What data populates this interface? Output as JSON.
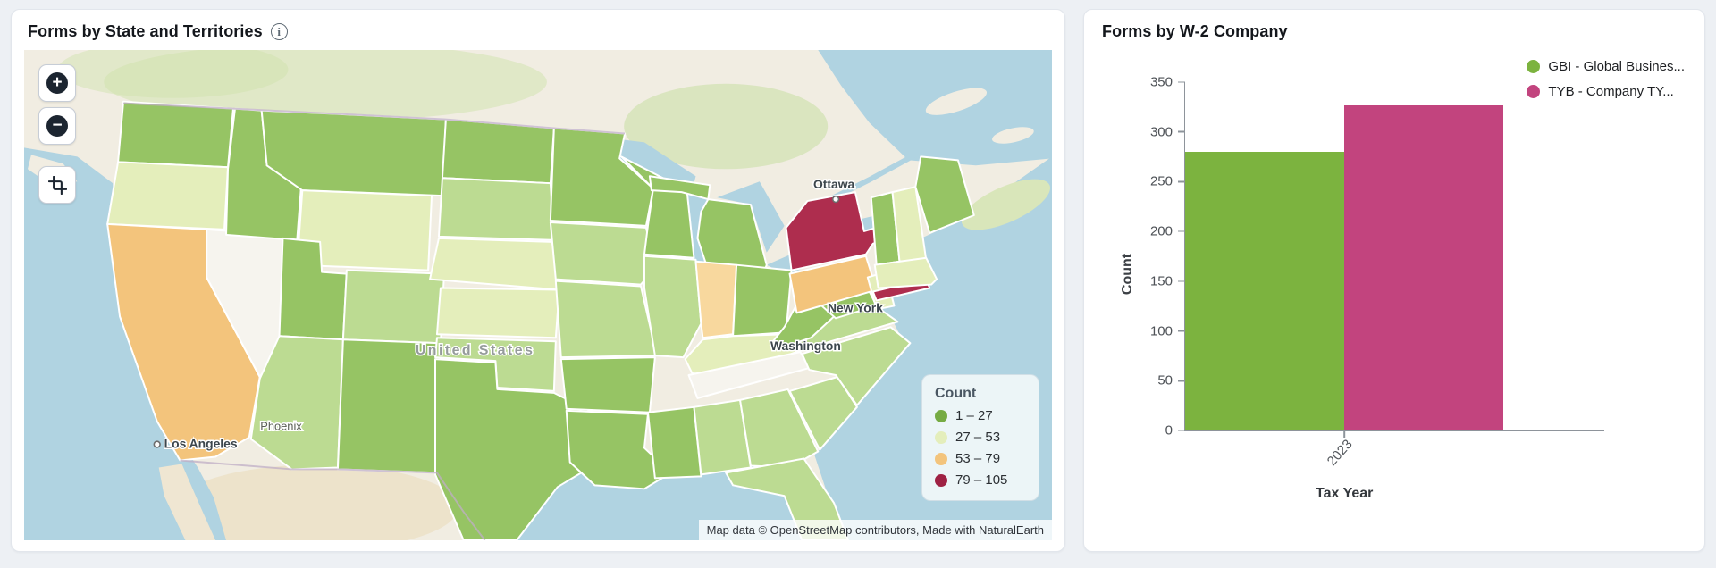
{
  "map_panel": {
    "title": "Forms by State and Territories",
    "controls": {
      "zoom_in_label": "+",
      "zoom_out_label": "−",
      "box_zoom_icon": "crop-icon"
    },
    "legend": {
      "title": "Count",
      "items": [
        {
          "label": "1 – 27",
          "color": "#76ab43"
        },
        {
          "label": "27 – 53",
          "color": "#e4eebb"
        },
        {
          "label": "53 – 79",
          "color": "#f3c47c"
        },
        {
          "label": "79 – 105",
          "color": "#9e2143"
        }
      ]
    },
    "attribution": "Map data © OpenStreetMap contributors, Made with NaturalEarth",
    "city_labels": [
      "Ottawa",
      "New York",
      "Washington",
      "United States",
      "Los Angeles",
      "Phoenix"
    ],
    "chart_data": {
      "type": "choropleth",
      "metric": "Count",
      "bins": [
        "1 – 27",
        "27 – 53",
        "53 – 79",
        "79 – 105"
      ],
      "palette": {
        "bin1": "#96c464",
        "bin1_light": "#bcdb92",
        "bin2": "#e4eebb",
        "bin3": "#f3c47c",
        "bin3_light": "#f8d89e",
        "bin4": "#ae2d4e",
        "no_data": "#f6f4ee"
      },
      "states": {
        "WA": "bin1",
        "OR": "bin2",
        "CA": "bin3",
        "NV": "no_data",
        "ID": "bin1",
        "MT": "bin1",
        "WY": "bin2",
        "UT": "bin1",
        "CO": "bin1_light",
        "AZ": "bin1_light",
        "NM": "bin1",
        "ND": "bin1",
        "SD": "bin1_light",
        "NE": "bin2",
        "KS": "bin2",
        "OK": "bin1_light",
        "TX": "bin1",
        "MN": "bin1",
        "IA": "bin1_light",
        "MO": "bin1_light",
        "AR": "bin1",
        "LA": "bin1",
        "WI": "bin1",
        "IL": "bin1_light",
        "IN": "bin3_light",
        "MI": "bin1",
        "OH": "bin1",
        "KY": "bin2",
        "TN": "no_data",
        "MS": "bin1",
        "AL": "bin1_light",
        "GA": "bin1_light",
        "FL": "bin1_light",
        "SC": "bin1_light",
        "NC": "bin1_light",
        "VA": "bin1_light",
        "WV": "bin1",
        "MD": "bin1",
        "PA": "bin3",
        "NJ": "bin2",
        "NY": "bin4",
        "VT": "bin1",
        "NH": "bin2",
        "ME": "bin1",
        "MA": "bin2"
      }
    }
  },
  "bar_panel": {
    "title": "Forms by W-2 Company",
    "chart_data": {
      "type": "bar",
      "categories": [
        "2023"
      ],
      "series": [
        {
          "name": "GBI - Global Busines...",
          "color": "#7cb33f",
          "values": [
            280
          ]
        },
        {
          "name": "TYB - Company TY...",
          "color": "#c2447e",
          "values": [
            327
          ]
        }
      ],
      "xlabel": "Tax Year",
      "ylabel": "Count",
      "ylim": [
        0,
        350
      ],
      "yticks": [
        0,
        50,
        100,
        150,
        200,
        250,
        300,
        350
      ],
      "legend_position": "top-right",
      "grid": false
    }
  }
}
